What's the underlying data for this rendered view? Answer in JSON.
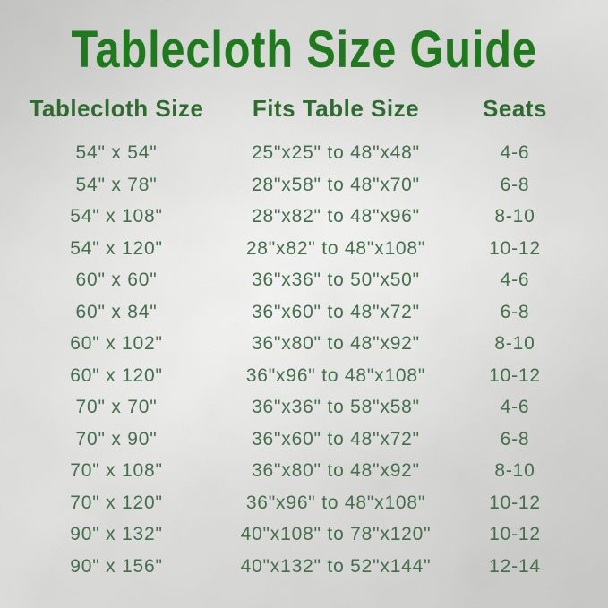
{
  "title": "Tablecloth Size Guide",
  "colors": {
    "title_green": "#1e7a1d",
    "header_green": "#2d6b2f",
    "body_green": "#446e4d",
    "background_silver": "#d8d8d6"
  },
  "table": {
    "headers": [
      "Tablecloth Size",
      "Fits Table Size",
      "Seats"
    ],
    "rows": [
      [
        "54\" x 54\"",
        "25\"x25\" to 48\"x48\"",
        "4-6"
      ],
      [
        "54\" x 78\"",
        "28\"x58\" to 48\"x70\"",
        "6-8"
      ],
      [
        "54\" x 108\"",
        "28\"x82\" to 48\"x96\"",
        "8-10"
      ],
      [
        "54\" x 120\"",
        "28\"x82\" to 48\"x108\"",
        "10-12"
      ],
      [
        "60\" x 60\"",
        "36\"x36\" to 50\"x50\"",
        "4-6"
      ],
      [
        "60\" x 84\"",
        "36\"x60\" to 48\"x72\"",
        "6-8"
      ],
      [
        "60\" x 102\"",
        "36\"x80\" to 48\"x92\"",
        "8-10"
      ],
      [
        "60\" x 120\"",
        "36\"x96\" to 48\"x108\"",
        "10-12"
      ],
      [
        "70\" x 70\"",
        "36\"x36\" to 58\"x58\"",
        "4-6"
      ],
      [
        "70\" x 90\"",
        "36\"x60\" to 48\"x72\"",
        "6-8"
      ],
      [
        "70\" x 108\"",
        "36\"x80\" to 48\"x92\"",
        "8-10"
      ],
      [
        "70\" x 120\"",
        "36\"x96\" to 48\"x108\"",
        "10-12"
      ],
      [
        "90\" x 132\"",
        "40\"x108\" to 78\"x120\"",
        "10-12"
      ],
      [
        "90\" x 156\"",
        "40\"x132\" to 52\"x144\"",
        "12-14"
      ]
    ]
  }
}
